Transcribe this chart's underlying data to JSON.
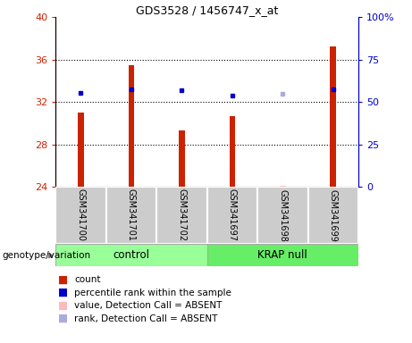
{
  "title": "GDS3528 / 1456747_x_at",
  "samples": [
    "GSM341700",
    "GSM341701",
    "GSM341702",
    "GSM341697",
    "GSM341698",
    "GSM341699"
  ],
  "groups": [
    {
      "label": "control",
      "color": "#99ff99"
    },
    {
      "label": "KRAP null",
      "color": "#66ee66"
    }
  ],
  "bar_values": [
    31.0,
    35.5,
    29.3,
    30.7,
    24.1,
    37.2
  ],
  "bar_base": 24.0,
  "bar_colors": [
    "#cc2200",
    "#cc2200",
    "#cc2200",
    "#cc2200",
    "#ffbbbb",
    "#cc2200"
  ],
  "dot_values": [
    32.9,
    33.2,
    33.15,
    32.65,
    32.8,
    33.2
  ],
  "dot_colors": [
    "#0000cc",
    "#0000cc",
    "#0000cc",
    "#0000cc",
    "#aaaadd",
    "#0000cc"
  ],
  "ylim_left": [
    24,
    40
  ],
  "ylim_right": [
    0,
    100
  ],
  "yticks_left": [
    24,
    28,
    32,
    36,
    40
  ],
  "yticks_right": [
    0,
    25,
    50,
    75,
    100
  ],
  "ytick_labels_right": [
    "0",
    "25",
    "50",
    "75",
    "100%"
  ],
  "grid_values": [
    28,
    32,
    36
  ],
  "left_color": "#cc2200",
  "right_color": "#0000cc",
  "bar_width": 0.12,
  "legend_items": [
    {
      "label": "count",
      "color": "#cc2200"
    },
    {
      "label": "percentile rank within the sample",
      "color": "#0000cc"
    },
    {
      "label": "value, Detection Call = ABSENT",
      "color": "#ffbbbb"
    },
    {
      "label": "rank, Detection Call = ABSENT",
      "color": "#aaaadd"
    }
  ],
  "xlabel_group": "genotype/variation",
  "sample_box_color": "#cccccc",
  "title_fontsize": 9,
  "sample_label_fontsize": 7,
  "group_label_fontsize": 8.5,
  "legend_fontsize": 7.5,
  "tick_fontsize": 8
}
